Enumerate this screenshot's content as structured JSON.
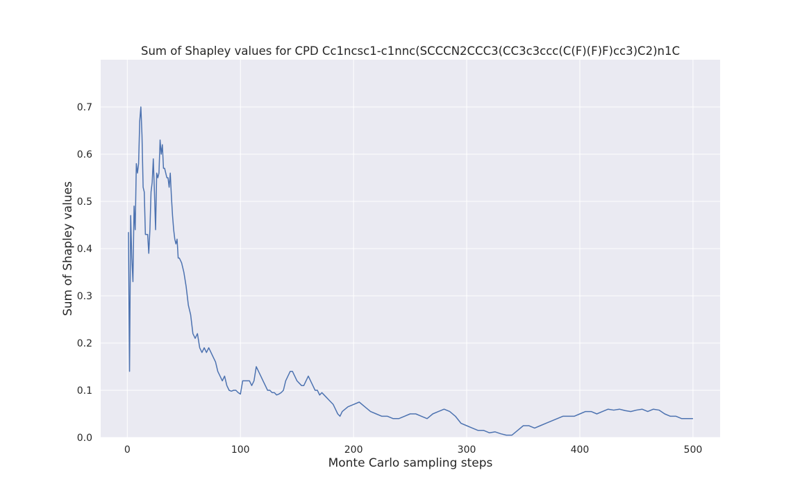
{
  "chart_data": {
    "type": "line",
    "title": "Sum of Shapley values for CPD Cc1ncsc1-c1nnc(SCCCN2CCC3(CC3c3ccc(C(F)(F)F)cc3)C2)n1C",
    "xlabel": "Monte Carlo sampling steps",
    "ylabel": "Sum of Shapley values",
    "xlim": [
      -23.5,
      524
    ],
    "ylim": [
      0.0,
      0.8
    ],
    "xticks": [
      0,
      100,
      200,
      300,
      400,
      500
    ],
    "yticks": [
      0.0,
      0.1,
      0.2,
      0.3,
      0.4,
      0.5,
      0.6,
      0.7
    ],
    "xtick_labels": [
      "0",
      "100",
      "200",
      "300",
      "400",
      "500"
    ],
    "ytick_labels": [
      "0.0",
      "0.1",
      "0.2",
      "0.3",
      "0.4",
      "0.5",
      "0.6",
      "0.7"
    ],
    "grid": true,
    "background": "#eaeaf2",
    "grid_color": "#ffffff",
    "line_color": "#4c72b0",
    "series": [
      {
        "x": [
          1,
          2,
          3,
          4,
          5,
          6,
          7,
          8,
          9,
          10,
          11,
          12,
          13,
          14,
          15,
          16,
          18,
          19,
          20,
          21,
          22,
          23,
          24,
          25,
          26,
          27,
          28,
          29,
          30,
          31,
          32,
          33,
          35,
          36,
          37,
          38,
          39,
          40,
          41,
          42,
          43,
          44,
          45,
          46,
          48,
          50,
          52,
          54,
          56,
          58,
          60,
          62,
          64,
          66,
          68,
          70,
          72,
          74,
          76,
          78,
          80,
          82,
          84,
          86,
          88,
          90,
          92,
          94,
          96,
          98,
          100,
          102,
          104,
          106,
          108,
          110,
          112,
          114,
          116,
          118,
          120,
          122,
          124,
          126,
          128,
          130,
          132,
          134,
          136,
          138,
          140,
          142,
          144,
          146,
          148,
          150,
          152,
          154,
          156,
          158,
          160,
          162,
          164,
          166,
          168,
          170,
          172,
          174,
          176,
          178,
          180,
          182,
          184,
          186,
          188,
          190,
          195,
          200,
          205,
          210,
          215,
          220,
          225,
          230,
          235,
          240,
          245,
          250,
          255,
          260,
          265,
          270,
          275,
          280,
          285,
          290,
          295,
          300,
          305,
          310,
          315,
          320,
          325,
          330,
          335,
          340,
          345,
          350,
          355,
          360,
          365,
          370,
          375,
          380,
          385,
          390,
          395,
          400,
          405,
          410,
          415,
          420,
          425,
          430,
          435,
          440,
          445,
          450,
          455,
          460,
          465,
          470,
          475,
          480,
          485,
          490,
          495,
          500
        ],
        "y": [
          0.435,
          0.14,
          0.47,
          0.38,
          0.33,
          0.49,
          0.44,
          0.58,
          0.56,
          0.58,
          0.67,
          0.7,
          0.64,
          0.53,
          0.52,
          0.43,
          0.43,
          0.39,
          0.44,
          0.52,
          0.54,
          0.59,
          0.52,
          0.44,
          0.56,
          0.55,
          0.56,
          0.63,
          0.6,
          0.62,
          0.57,
          0.57,
          0.55,
          0.55,
          0.53,
          0.56,
          0.51,
          0.47,
          0.44,
          0.42,
          0.41,
          0.42,
          0.38,
          0.38,
          0.37,
          0.35,
          0.32,
          0.28,
          0.26,
          0.22,
          0.21,
          0.22,
          0.19,
          0.18,
          0.19,
          0.18,
          0.19,
          0.18,
          0.17,
          0.16,
          0.14,
          0.13,
          0.12,
          0.13,
          0.11,
          0.1,
          0.098,
          0.1,
          0.1,
          0.095,
          0.092,
          0.12,
          0.12,
          0.12,
          0.12,
          0.11,
          0.12,
          0.15,
          0.14,
          0.13,
          0.12,
          0.11,
          0.1,
          0.1,
          0.095,
          0.095,
          0.09,
          0.092,
          0.095,
          0.1,
          0.12,
          0.13,
          0.14,
          0.14,
          0.13,
          0.12,
          0.115,
          0.11,
          0.11,
          0.12,
          0.13,
          0.12,
          0.11,
          0.1,
          0.1,
          0.09,
          0.095,
          0.09,
          0.085,
          0.08,
          0.075,
          0.07,
          0.06,
          0.05,
          0.045,
          0.055,
          0.065,
          0.07,
          0.075,
          0.065,
          0.055,
          0.05,
          0.045,
          0.045,
          0.04,
          0.04,
          0.045,
          0.05,
          0.05,
          0.045,
          0.04,
          0.05,
          0.055,
          0.06,
          0.055,
          0.045,
          0.03,
          0.025,
          0.02,
          0.015,
          0.015,
          0.01,
          0.012,
          0.008,
          0.005,
          0.005,
          0.015,
          0.025,
          0.025,
          0.02,
          0.025,
          0.03,
          0.035,
          0.04,
          0.045,
          0.045,
          0.045,
          0.05,
          0.055,
          0.055,
          0.05,
          0.055,
          0.06,
          0.058,
          0.06,
          0.057,
          0.055,
          0.058,
          0.06,
          0.055,
          0.06,
          0.058,
          0.05,
          0.045,
          0.045,
          0.04,
          0.04,
          0.04
        ]
      }
    ]
  }
}
